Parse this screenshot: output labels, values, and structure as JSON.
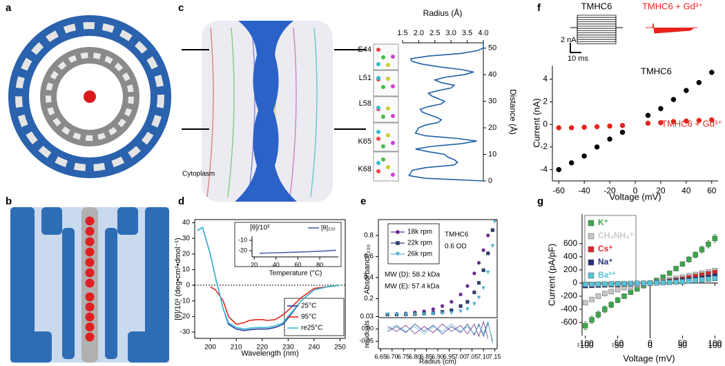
{
  "panel_labels": [
    "a",
    "b",
    "c",
    "d",
    "e",
    "f",
    "g"
  ],
  "chart_data": [
    {
      "type": "line",
      "xlabel": "Radius (Å)",
      "ylabel": "Distance (Å)",
      "xlim": [
        1.5,
        4.0
      ],
      "xticks": [
        1.5,
        {
          "value": 2,
          "label": "2.0"
        },
        2.5,
        {
          "value": 3,
          "label": "3.0"
        },
        3.5,
        {
          "value": 4,
          "label": "4.0"
        }
      ],
      "ylim": [
        0,
        52
      ],
      "yticks": [
        0,
        10,
        20,
        30,
        40,
        50
      ],
      "series": [
        {
          "color": "#1f5fa8",
          "x": [
            4.0,
            2.2,
            1.7,
            1.8,
            2.2,
            3.1,
            3.2,
            3.1,
            2.9,
            2.8,
            2.3,
            1.9,
            2.4,
            3.3,
            3.8,
            3.2,
            2.2,
            1.9,
            1.95,
            2.0,
            2.2,
            2.6,
            2.7,
            2.55,
            2.3,
            2.1,
            2.05,
            2.3,
            2.7,
            2.8,
            2.6,
            2.4,
            2.3,
            2.6,
            3.0,
            3.1,
            2.7,
            2.5,
            2.8,
            3.4,
            3.7,
            3.3,
            2.6,
            2.1,
            1.8,
            1.75,
            2.3,
            3.3,
            3.8,
            4.0,
            4.0
          ],
          "values": [
            0,
            1,
            2,
            4,
            5,
            6,
            7,
            8,
            9,
            10,
            11,
            12,
            13,
            14,
            15,
            16,
            17,
            18,
            19,
            20,
            21,
            22,
            23,
            24,
            25,
            26,
            27,
            28,
            29,
            30,
            31,
            32,
            33,
            34,
            35,
            36,
            37,
            38,
            39,
            40,
            41,
            42,
            43,
            44,
            45,
            46,
            47,
            48,
            49,
            50,
            52
          ]
        }
      ],
      "annotations": [
        "E44",
        "L51",
        "L58",
        "K65",
        "K68",
        "Cytoplasm"
      ]
    },
    {
      "type": "line",
      "xlabel": "Wavelength (nm)",
      "ylabel": "[θ]/10³ (deg•cm²•dmol⁻¹)",
      "xlim": [
        194,
        252
      ],
      "xticks": [
        200,
        210,
        220,
        230,
        240,
        250
      ],
      "ylim": [
        -34,
        42
      ],
      "yticks": [
        -30,
        -20,
        -10,
        0,
        10,
        20,
        30,
        40
      ],
      "reference_line": 0,
      "x": [
        195,
        197,
        200,
        202,
        205,
        207,
        210,
        213,
        215,
        218,
        220,
        222,
        225,
        228,
        230,
        235,
        240,
        245,
        250
      ],
      "series": [
        {
          "name": "25°C",
          "color": "#1f3f9f",
          "values": [
            35,
            37,
            20,
            5,
            -15,
            -25,
            -28,
            -29,
            -28.5,
            -28,
            -28,
            -28,
            -27,
            -25,
            -21,
            -10,
            -3,
            -1,
            0
          ]
        },
        {
          "name": "95°C",
          "color": "#e0261e",
          "values": [
            null,
            null,
            -1,
            -3,
            -10,
            -20,
            -25,
            -24,
            -22.5,
            -22,
            -22,
            -22.5,
            -22,
            -19,
            -16,
            -8,
            -2,
            -1,
            0
          ]
        },
        {
          "name": "re25°C",
          "color": "#3fb8d8",
          "values": [
            35,
            37,
            20,
            5,
            -15,
            -24,
            -27,
            -28,
            -27.5,
            -27,
            -27,
            -27,
            -26,
            -24,
            -20,
            -10,
            -3,
            -1,
            0
          ]
        }
      ]
    },
    {
      "type": "line",
      "xlabel": "Temperature (°C)",
      "ylabel": "[θ]/10³",
      "xlim": [
        18,
        97
      ],
      "xticks": [
        20,
        40,
        60,
        80
      ],
      "ylim": [
        -26,
        -6
      ],
      "yticks": [
        -20,
        -10
      ],
      "series": [
        {
          "name": "[θ]₂₂₀",
          "color": "#4a5fb0",
          "x": [
            25,
            40,
            55,
            70,
            85,
            95
          ],
          "values": [
            -22.5,
            -22,
            -21.5,
            -21,
            -20.3,
            -19.5
          ]
        }
      ]
    },
    {
      "type": "scatter",
      "ylabel": "Absorbance₂₃₀",
      "xlim": [
        6.64,
        7.16
      ],
      "ylim": [
        0.02,
        0.95
      ],
      "yticks": [
        0.03,
        0.2,
        0.4,
        0.6,
        0.8
      ],
      "x": [
        6.68,
        6.72,
        6.76,
        6.8,
        6.84,
        6.88,
        6.92,
        6.96,
        7.0,
        7.03,
        7.06,
        7.08,
        7.1,
        7.12,
        7.14,
        7.15
      ],
      "series": [
        {
          "name": "18k rpm",
          "color": "#6a2c8c",
          "marker": "circle",
          "values": [
            0.05,
            0.055,
            0.06,
            0.07,
            0.08,
            0.1,
            0.13,
            0.17,
            0.24,
            0.32,
            0.44,
            0.54,
            0.66,
            0.8,
            null,
            null
          ]
        },
        {
          "name": "22k rpm",
          "color": "#2a3f7f",
          "marker": "square",
          "values": [
            0.05,
            0.05,
            0.052,
            0.055,
            0.06,
            0.065,
            0.075,
            0.09,
            0.13,
            0.17,
            0.26,
            0.35,
            0.47,
            0.63,
            0.85,
            null
          ]
        },
        {
          "name": "26k rpm",
          "color": "#4fb0d0",
          "marker": "triangle",
          "values": [
            0.05,
            0.05,
            0.05,
            0.05,
            0.052,
            0.055,
            0.06,
            0.065,
            0.08,
            0.1,
            0.15,
            0.21,
            0.3,
            0.45,
            0.7,
            0.93
          ]
        }
      ],
      "annotations": [
        "TMHC6",
        "0.6 OD",
        "MW (D): 58.2 kDa",
        "MW (E): 57.4 kDa"
      ]
    },
    {
      "type": "line",
      "xlabel": "Radius (cm)",
      "ylabel": "residuals",
      "xlim": [
        6.64,
        7.16
      ],
      "xticks": [
        6.65,
        {
          "value": 6.7,
          "label": "6.70"
        },
        6.75,
        {
          "value": 6.8,
          "label": "6.80"
        },
        6.85,
        {
          "value": 6.9,
          "label": "6.90"
        },
        6.95,
        {
          "value": 7,
          "label": "7.00"
        },
        7.05,
        {
          "value": 7.1,
          "label": "7.10"
        },
        7.15
      ],
      "ylim": [
        -0.08,
        0.04
      ],
      "yticks": [
        -0.05,
        {
          "value": 0,
          "label": "0.00"
        }
      ],
      "x": [
        6.68,
        6.72,
        6.76,
        6.8,
        6.84,
        6.88,
        6.92,
        6.96,
        7.0,
        7.03,
        7.06,
        7.08,
        7.1,
        7.12,
        7.14
      ],
      "series": [
        {
          "color": "#6a2c8c",
          "values": [
            0.01,
            -0.01,
            0.015,
            -0.02,
            0.01,
            -0.015,
            0.02,
            -0.01,
            0.015,
            -0.02,
            0.02,
            -0.03,
            0.03,
            -0.04,
            null
          ]
        },
        {
          "color": "#2a3f7f",
          "values": [
            -0.01,
            0.01,
            -0.015,
            0.02,
            -0.01,
            0.015,
            -0.02,
            0.01,
            -0.015,
            0.02,
            -0.025,
            0.02,
            -0.03,
            0.025,
            -0.05
          ]
        },
        {
          "color": "#4fb0d0",
          "values": [
            0.0,
            0.015,
            -0.01,
            0.01,
            -0.02,
            0.01,
            -0.01,
            0.02,
            -0.01,
            0.01,
            -0.02,
            0.015,
            -0.02,
            0.03,
            -0.06
          ]
        }
      ]
    },
    {
      "type": "scatter",
      "xlabel": "Voltage (mV)",
      "ylabel": "Current (nA)",
      "xlim": [
        -65,
        65
      ],
      "xticks": [
        -60,
        -40,
        -20,
        0,
        20,
        40,
        60
      ],
      "ylim": [
        -5,
        5.2
      ],
      "yticks": [
        -4,
        -2,
        0,
        2,
        4
      ],
      "x": [
        -60,
        -50,
        -40,
        -30,
        -20,
        -10,
        10,
        20,
        30,
        40,
        50,
        60
      ],
      "series": [
        {
          "name": "TMHC6",
          "color": "#000000",
          "marker": "circle",
          "values": [
            -4,
            -3.4,
            -2.8,
            -2.0,
            -1.3,
            -0.7,
            0.8,
            1.4,
            2.2,
            3.0,
            3.7,
            4.6
          ]
        },
        {
          "name": "TMHC6 + Gd³⁺",
          "color": "#e8231c",
          "marker": "circle",
          "values": [
            -0.3,
            -0.3,
            -0.25,
            -0.2,
            -0.15,
            -0.1,
            0.1,
            0.15,
            0.25,
            0.3,
            0.35,
            0.4
          ]
        }
      ],
      "trace_labels": [
        "TMHC6",
        "TMHC6 + Gd³⁺"
      ],
      "scale_labels": [
        "2 nA",
        "10 ms"
      ]
    },
    {
      "type": "scatter",
      "xlabel": "Voltage (mV)",
      "ylabel": "Current (pA/pF)",
      "xlim": [
        -105,
        105
      ],
      "xticks": [
        -100,
        -50,
        0,
        50,
        100
      ],
      "ylim": [
        -800,
        1050
      ],
      "yticks": [
        -600,
        -400,
        -200,
        0,
        200,
        400,
        600
      ],
      "x": [
        -100,
        -90,
        -80,
        -70,
        -60,
        -50,
        -40,
        -30,
        -20,
        -10,
        0,
        10,
        20,
        30,
        40,
        50,
        60,
        70,
        80,
        90,
        100
      ],
      "series": [
        {
          "name": "K⁺",
          "color": "#3aa84a",
          "marker": "square",
          "values": [
            -650,
            -560,
            -480,
            -400,
            -330,
            -260,
            -200,
            -140,
            -90,
            -40,
            0,
            40,
            90,
            150,
            220,
            290,
            360,
            430,
            510,
            590,
            680
          ],
          "errors": [
            60,
            55,
            50,
            50,
            45,
            40,
            35,
            30,
            25,
            20,
            10,
            15,
            20,
            25,
            30,
            35,
            40,
            45,
            50,
            55,
            60
          ]
        },
        {
          "name": "CH₃NH₃⁺",
          "color": "#c8c8c8",
          "marker": "square",
          "values": [
            -300,
            -250,
            -200,
            -160,
            -130,
            -100,
            -70,
            -50,
            -30,
            -15,
            0,
            15,
            30,
            50,
            70,
            90,
            110,
            130,
            150,
            170,
            190
          ]
        },
        {
          "name": "Cs⁺",
          "color": "#e0262a",
          "marker": "square",
          "values": [
            -30,
            -28,
            -25,
            -22,
            -20,
            -17,
            -14,
            -10,
            -7,
            -4,
            0,
            5,
            15,
            30,
            45,
            60,
            80,
            100,
            120,
            140,
            160
          ]
        },
        {
          "name": "Na⁺",
          "color": "#23337a",
          "marker": "square",
          "values": [
            -40,
            -36,
            -32,
            -28,
            -24,
            -20,
            -16,
            -12,
            -8,
            -4,
            0,
            4,
            10,
            20,
            30,
            40,
            50,
            60,
            75,
            90,
            110
          ]
        },
        {
          "name": "Ba²⁺",
          "color": "#56c4d8",
          "marker": "square",
          "values": [
            -20,
            -18,
            -16,
            -14,
            -12,
            -10,
            -8,
            -6,
            -4,
            -2,
            0,
            3,
            6,
            10,
            15,
            20,
            30,
            40,
            50,
            60,
            70
          ]
        }
      ]
    }
  ]
}
